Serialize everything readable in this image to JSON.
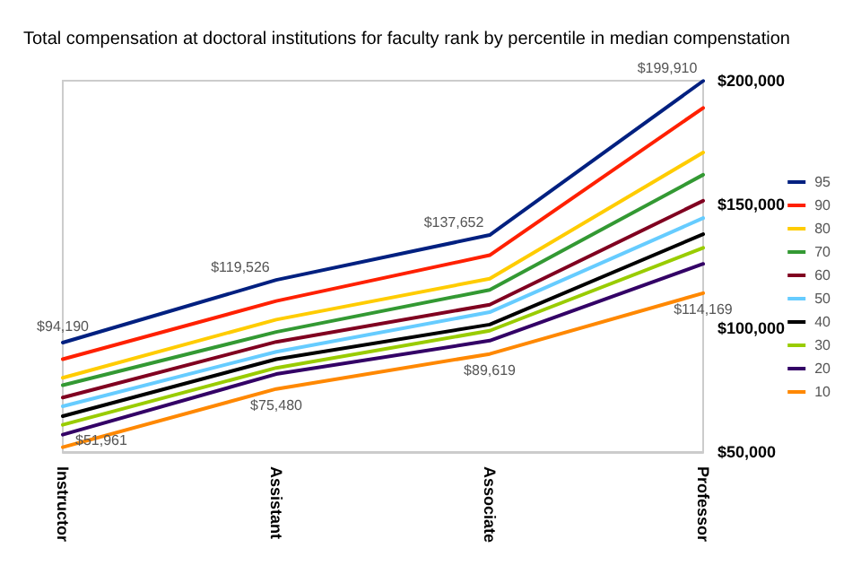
{
  "chart_data": {
    "type": "line",
    "title": "Total compensation at doctoral institutions for faculty rank by percentile in median compenstation",
    "categories": [
      "Instructor",
      "Assistant",
      "Associate",
      "Professor"
    ],
    "ylim": [
      50000,
      200000
    ],
    "yticks": [
      {
        "value": 50000,
        "label": "$50,000"
      },
      {
        "value": 100000,
        "label": "$100,000"
      },
      {
        "value": 150000,
        "label": "$150,000"
      },
      {
        "value": 200000,
        "label": "$200,000"
      }
    ],
    "grid": false,
    "legend": "right",
    "marker": "none",
    "line_style": "solid",
    "series": [
      {
        "name": "95",
        "color": "#002080",
        "values": [
          94190,
          119526,
          137652,
          199910
        ],
        "value_labels": [
          "$94,190",
          "$119,526",
          "$137,652",
          "$199,910"
        ]
      },
      {
        "name": "90",
        "color": "#ff2000",
        "values": [
          87500,
          111000,
          129500,
          189000
        ]
      },
      {
        "name": "80",
        "color": "#ffcc00",
        "values": [
          80000,
          103500,
          120000,
          171000
        ]
      },
      {
        "name": "70",
        "color": "#339933",
        "values": [
          77000,
          98500,
          115500,
          162000
        ]
      },
      {
        "name": "60",
        "color": "#800020",
        "values": [
          72000,
          94500,
          109500,
          151500
        ]
      },
      {
        "name": "50",
        "color": "#66ccff",
        "values": [
          68500,
          90500,
          106500,
          144500
        ]
      },
      {
        "name": "40",
        "color": "#000000",
        "values": [
          64500,
          87500,
          101500,
          138000
        ]
      },
      {
        "name": "30",
        "color": "#99cc00",
        "values": [
          61000,
          84000,
          99000,
          132500
        ]
      },
      {
        "name": "20",
        "color": "#330066",
        "values": [
          57000,
          81500,
          95000,
          126000
        ]
      },
      {
        "name": "10",
        "color": "#ff8800",
        "values": [
          51961,
          75480,
          89619,
          114169
        ],
        "value_labels": [
          "$51,961",
          "$75,480",
          "$89,619",
          "$114,169"
        ]
      }
    ]
  }
}
